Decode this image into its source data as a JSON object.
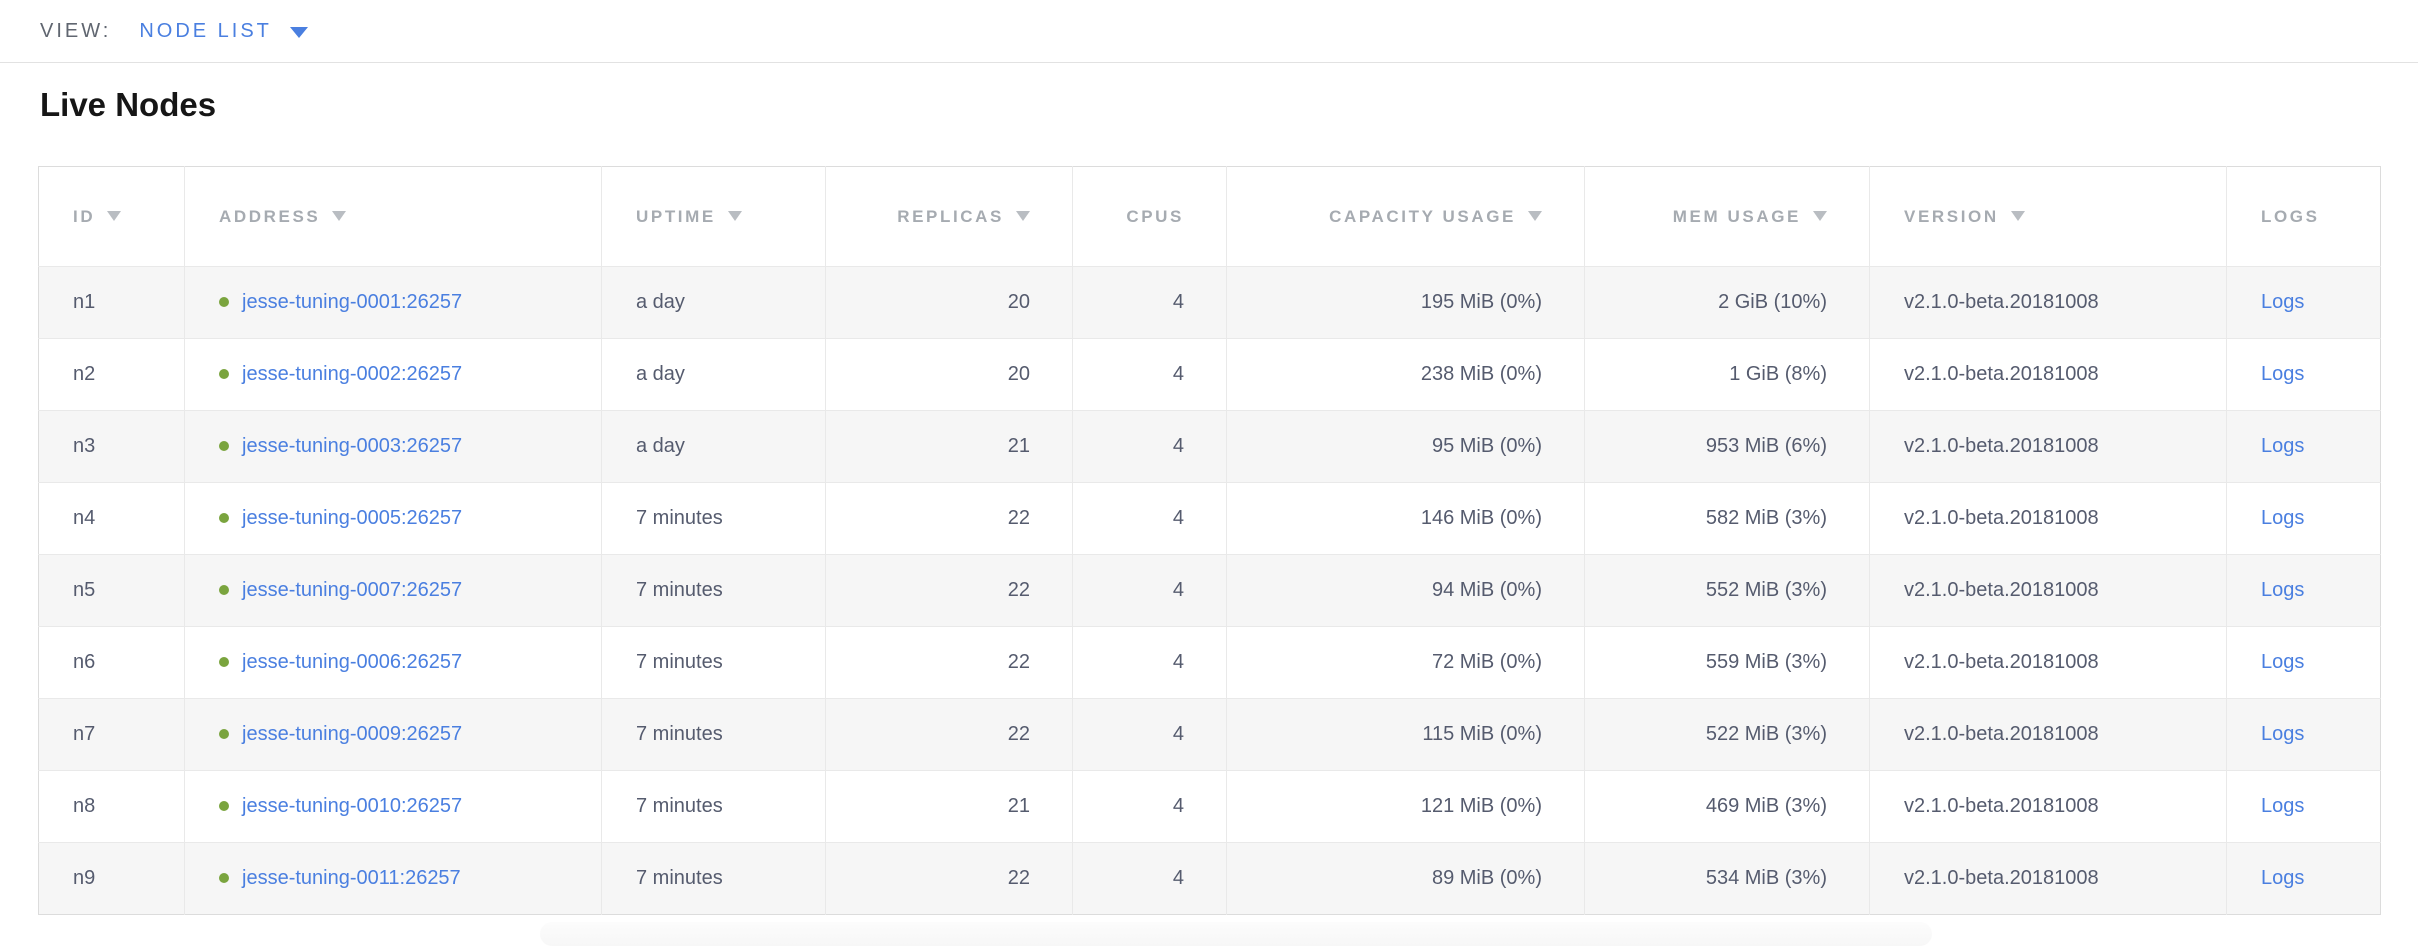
{
  "view_bar": {
    "label": "VIEW:",
    "selected": "NODE LIST"
  },
  "page": {
    "title": "Live Nodes"
  },
  "colors": {
    "link_blue": "#4a7fe0",
    "live_green": "#7aa43e",
    "header_gray": "#a6abb1",
    "body_text": "#555b6e"
  },
  "table": {
    "columns": [
      {
        "key": "id",
        "label": "ID",
        "sorted": true
      },
      {
        "key": "address",
        "label": "ADDRESS",
        "sorted": true
      },
      {
        "key": "uptime",
        "label": "UPTIME",
        "sorted": true
      },
      {
        "key": "replicas",
        "label": "REPLICAS",
        "sorted": true
      },
      {
        "key": "cpus",
        "label": "CPUS",
        "sorted": false
      },
      {
        "key": "capacity",
        "label": "CAPACITY USAGE",
        "sorted": true
      },
      {
        "key": "mem",
        "label": "MEM USAGE",
        "sorted": true
      },
      {
        "key": "version",
        "label": "VERSION",
        "sorted": true
      },
      {
        "key": "logs",
        "label": "LOGS",
        "sorted": false
      }
    ],
    "rows": [
      {
        "id": "n1",
        "status": "live",
        "address": "jesse-tuning-0001:26257",
        "uptime": "a day",
        "replicas": "20",
        "cpus": "4",
        "capacity": "195 MiB (0%)",
        "mem": "2 GiB (10%)",
        "version": "v2.1.0-beta.20181008",
        "logs": "Logs"
      },
      {
        "id": "n2",
        "status": "live",
        "address": "jesse-tuning-0002:26257",
        "uptime": "a day",
        "replicas": "20",
        "cpus": "4",
        "capacity": "238 MiB (0%)",
        "mem": "1 GiB (8%)",
        "version": "v2.1.0-beta.20181008",
        "logs": "Logs"
      },
      {
        "id": "n3",
        "status": "live",
        "address": "jesse-tuning-0003:26257",
        "uptime": "a day",
        "replicas": "21",
        "cpus": "4",
        "capacity": "95 MiB (0%)",
        "mem": "953 MiB (6%)",
        "version": "v2.1.0-beta.20181008",
        "logs": "Logs"
      },
      {
        "id": "n4",
        "status": "live",
        "address": "jesse-tuning-0005:26257",
        "uptime": "7 minutes",
        "replicas": "22",
        "cpus": "4",
        "capacity": "146 MiB (0%)",
        "mem": "582 MiB (3%)",
        "version": "v2.1.0-beta.20181008",
        "logs": "Logs"
      },
      {
        "id": "n5",
        "status": "live",
        "address": "jesse-tuning-0007:26257",
        "uptime": "7 minutes",
        "replicas": "22",
        "cpus": "4",
        "capacity": "94 MiB (0%)",
        "mem": "552 MiB (3%)",
        "version": "v2.1.0-beta.20181008",
        "logs": "Logs"
      },
      {
        "id": "n6",
        "status": "live",
        "address": "jesse-tuning-0006:26257",
        "uptime": "7 minutes",
        "replicas": "22",
        "cpus": "4",
        "capacity": "72 MiB (0%)",
        "mem": "559 MiB (3%)",
        "version": "v2.1.0-beta.20181008",
        "logs": "Logs"
      },
      {
        "id": "n7",
        "status": "live",
        "address": "jesse-tuning-0009:26257",
        "uptime": "7 minutes",
        "replicas": "22",
        "cpus": "4",
        "capacity": "115 MiB (0%)",
        "mem": "522 MiB (3%)",
        "version": "v2.1.0-beta.20181008",
        "logs": "Logs"
      },
      {
        "id": "n8",
        "status": "live",
        "address": "jesse-tuning-0010:26257",
        "uptime": "7 minutes",
        "replicas": "21",
        "cpus": "4",
        "capacity": "121 MiB (0%)",
        "mem": "469 MiB (3%)",
        "version": "v2.1.0-beta.20181008",
        "logs": "Logs"
      },
      {
        "id": "n9",
        "status": "live",
        "address": "jesse-tuning-0011:26257",
        "uptime": "7 minutes",
        "replicas": "22",
        "cpus": "4",
        "capacity": "89 MiB (0%)",
        "mem": "534 MiB (3%)",
        "version": "v2.1.0-beta.20181008",
        "logs": "Logs"
      }
    ]
  }
}
